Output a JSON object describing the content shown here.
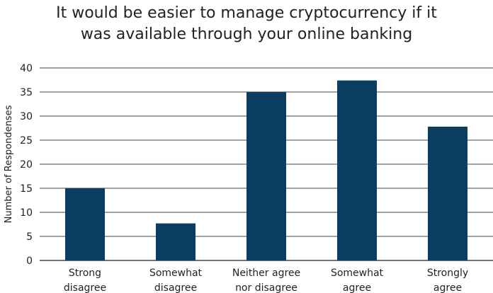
{
  "chart_data": {
    "type": "bar",
    "title_lines": [
      "It would be easier to manage cryptocurrency if it",
      "was available through your online banking"
    ],
    "ylabel": "Number of Respondenses",
    "xlabel": "",
    "categories": [
      [
        "Strong",
        "disagree"
      ],
      [
        "Somewhat",
        "disagree"
      ],
      [
        "Neither agree",
        "nor disagree"
      ],
      [
        "Somewhat",
        "agree"
      ],
      [
        "Strongly",
        "agree"
      ]
    ],
    "values": [
      15,
      7.7,
      35,
      37.4,
      27.8
    ],
    "ylim": [
      0,
      40
    ],
    "yticks": [
      0,
      5,
      10,
      15,
      20,
      25,
      30,
      35,
      40
    ],
    "grid": true,
    "bar_color": "#0c3d62",
    "grid_color": "#444444"
  }
}
